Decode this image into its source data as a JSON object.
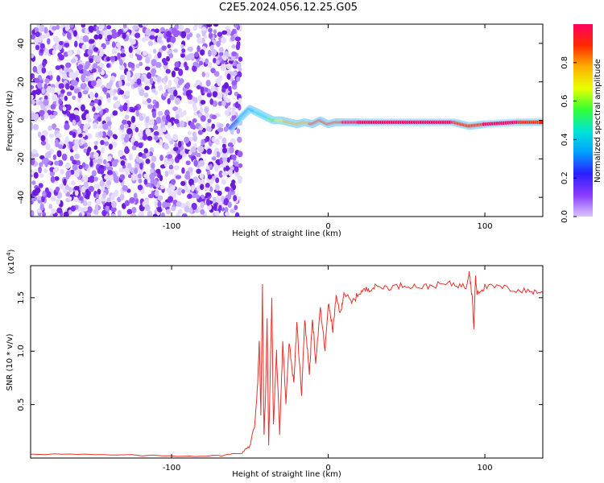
{
  "title": "C2E5.2024.056.12.25.G05",
  "colors": {
    "snr_line": "#e8322b",
    "scatter_purple": "#6a1bd8",
    "colorbar": [
      "#d9c6ff",
      "#8a3bff",
      "#2b1eff",
      "#00a0ff",
      "#00e5d5",
      "#33ff33",
      "#e8ff00",
      "#ffb000",
      "#ff2a00",
      "#ff0060"
    ]
  },
  "chart_data": [
    {
      "type": "heatmap",
      "xlabel": "Height of straight line (km)",
      "ylabel": "Frequency (Hz)",
      "xlim": [
        -190,
        137
      ],
      "ylim": [
        -50,
        50
      ],
      "x_ticks": [
        -100,
        0,
        100
      ],
      "y_ticks": [
        40,
        20,
        0,
        -20,
        -40
      ],
      "x_tick_labels": [
        "-100",
        "0",
        "100"
      ],
      "y_tick_labels": [
        "40",
        "20",
        "0",
        "-20",
        "-40"
      ],
      "noise_region_x": [
        -190,
        -60
      ],
      "signal_track": {
        "x": [
          -62,
          -55,
          -50,
          -45,
          -40,
          -35,
          -30,
          -25,
          -20,
          -15,
          -10,
          -5,
          0,
          5,
          10,
          20,
          40,
          60,
          80,
          90,
          100,
          120,
          137
        ],
        "y": [
          -4,
          2,
          6,
          4,
          2,
          0,
          0,
          -1,
          -2,
          -1,
          -2,
          0,
          -2,
          -1,
          -1,
          -1,
          -1,
          -1,
          -1,
          -3,
          -2,
          -1,
          -1
        ],
        "amplitude": [
          0.2,
          0.3,
          0.35,
          0.4,
          0.45,
          0.55,
          0.7,
          0.75,
          0.8,
          0.8,
          0.85,
          0.85,
          0.9,
          0.9,
          0.95,
          1.0,
          1.0,
          1.0,
          0.95,
          0.9,
          0.95,
          0.95,
          0.9
        ]
      },
      "colorbar": {
        "label": "Normalized spectral amplitude",
        "range": [
          0,
          1
        ],
        "ticks": [
          0.0,
          0.2,
          0.4,
          0.6,
          0.8
        ],
        "tick_labels": [
          "0.0",
          "0.2",
          "0.4",
          "0.6",
          "0.8"
        ]
      }
    },
    {
      "type": "line",
      "xlabel": "Height of straight line (km)",
      "ylabel": "SNR (10 * v/v)",
      "y_multiplier": "(x10",
      "y_multiplier_exp": "4",
      "y_multiplier_close": ")",
      "xlim": [
        -190,
        137
      ],
      "ylim": [
        0,
        1.8
      ],
      "x_ticks": [
        -100,
        0,
        100
      ],
      "x_tick_labels": [
        "-100",
        "0",
        "100"
      ],
      "y_ticks": [
        0.5,
        1.0,
        1.5
      ],
      "y_tick_labels": [
        "0.5",
        "1.0",
        "1.5"
      ],
      "series": [
        {
          "x": [
            -190,
            -150,
            -100,
            -70,
            -55,
            -50,
            -47,
            -45,
            -44,
            -43,
            -42,
            -41,
            -40,
            -39,
            -38,
            -37,
            -36,
            -35,
            -33,
            -31,
            -29,
            -27,
            -25,
            -22,
            -20,
            -17,
            -15,
            -12,
            -10,
            -8,
            -5,
            -2,
            0,
            3,
            5,
            8,
            10,
            15,
            20,
            25,
            30,
            40,
            50,
            60,
            70,
            80,
            88,
            90,
            92,
            93,
            94,
            95,
            100,
            110,
            120,
            130,
            137
          ],
          "y": [
            0.04,
            0.03,
            0.02,
            0.02,
            0.05,
            0.12,
            0.3,
            0.7,
            1.1,
            0.4,
            1.6,
            0.2,
            0.6,
            1.3,
            0.1,
            0.8,
            1.5,
            0.3,
            1.0,
            0.2,
            1.1,
            0.5,
            1.1,
            0.7,
            1.25,
            0.6,
            1.3,
            0.8,
            1.3,
            0.9,
            1.4,
            1.0,
            1.45,
            1.2,
            1.5,
            1.35,
            1.55,
            1.45,
            1.55,
            1.58,
            1.6,
            1.6,
            1.62,
            1.6,
            1.62,
            1.63,
            1.6,
            1.75,
            1.5,
            1.2,
            1.7,
            1.55,
            1.6,
            1.6,
            1.57,
            1.56,
            1.55
          ]
        }
      ]
    }
  ]
}
